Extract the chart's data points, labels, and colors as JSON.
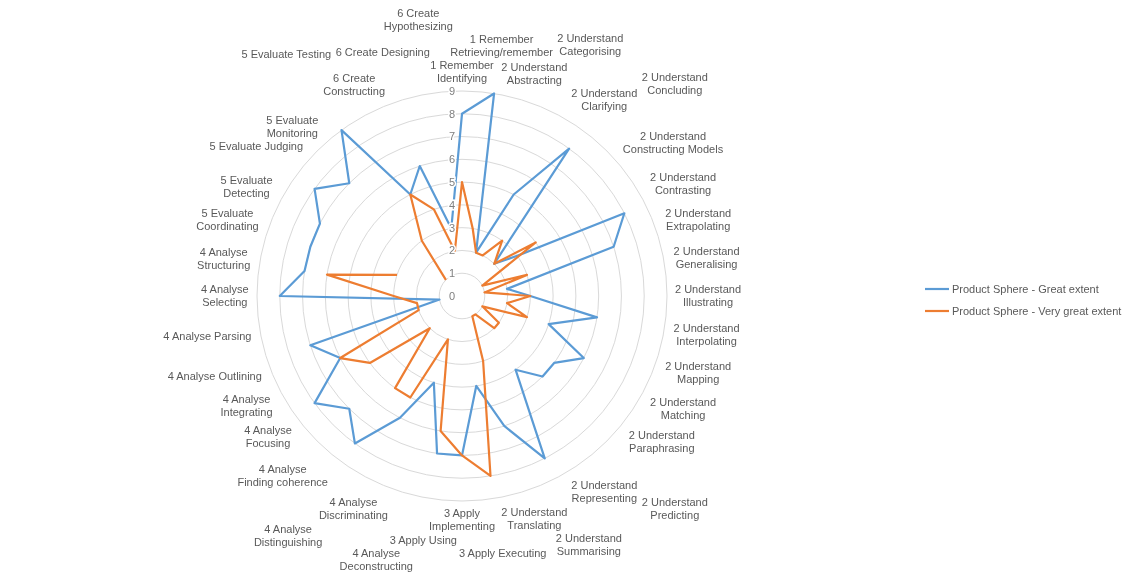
{
  "chart_data": {
    "type": "radar",
    "categories": [
      "1 Remember Identifying",
      "1 Remember Retrieving/remember",
      "2 Understand Abstracting",
      "2 Understand Categorising",
      "2 Understand Clarifying",
      "2 Understand Concluding",
      "2 Understand Constructing Models",
      "2 Understand Contrasting",
      "2 Understand Extrapolating",
      "2 Understand Generalising",
      "2 Understand Illustrating",
      "2 Understand Interpolating",
      "2 Understand Mapping",
      "2 Understand Matching",
      "2 Understand Paraphrasing",
      "2 Understand Predicting",
      "2 Understand Representing",
      "2 Understand Summarising",
      "2 Understand Translating",
      "3 Apply Executing",
      "3 Apply Implementing",
      "3 Apply Using",
      "4 Analyse Deconstructing",
      "4 Analyse Discriminating",
      "4 Analyse Distinguishing",
      "4 Analyse Finding coherence",
      "4 Analyse Focusing",
      "4 Analyse Integrating",
      "4 Analyse Outlining",
      "4 Analyse Parsing",
      "4 Analyse Selecting",
      "4 Analyse Structuring",
      "5 Evaluate Coordinating",
      "5 Evaluate Detecting",
      "5 Evaluate Judging",
      "5 Evaluate Monitoring",
      "5 Evaluate Testing",
      "6 Create Constructing",
      "6 Create Designing",
      "6 Create Hypothesizing"
    ],
    "series": [
      {
        "name": "Product Sphere - Great extent",
        "color": "#5b9bd5",
        "values": [
          8,
          9,
          2,
          5,
          8,
          2,
          3,
          8,
          7,
          2,
          3,
          6,
          4,
          6,
          5,
          5,
          4,
          8,
          6,
          4,
          7,
          7,
          4,
          6,
          8,
          7,
          8,
          6,
          7,
          1,
          8,
          7,
          7,
          7,
          8,
          7,
          9,
          5,
          6,
          3
        ]
      },
      {
        "name": "Product Sphere - Very great extent",
        "color": "#ed7d31",
        "values": [
          5,
          3,
          2,
          2,
          3,
          2,
          4,
          1,
          3,
          1,
          3,
          2,
          3,
          1,
          2,
          2,
          1,
          1,
          3,
          8,
          7,
          6,
          2,
          5,
          5,
          2,
          5,
          6,
          2,
          2,
          3,
          6,
          3,
          null,
          null,
          1,
          3,
          5,
          4,
          2
        ]
      }
    ],
    "ylim": [
      0,
      9
    ],
    "yticks": [
      0,
      1,
      2,
      3,
      4,
      5,
      6,
      7,
      8,
      9
    ],
    "grid": true,
    "legend": "right"
  }
}
